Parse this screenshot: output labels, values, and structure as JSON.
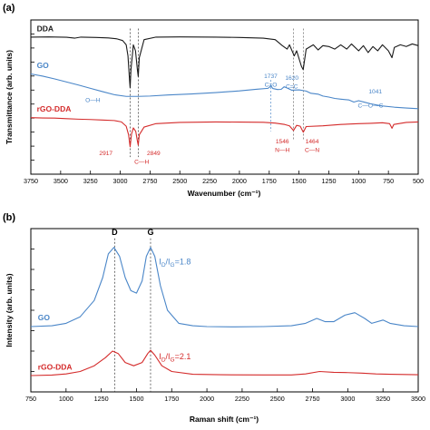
{
  "chart_data": [
    {
      "type": "line",
      "panel_label": "(a)",
      "xlabel": "Wavenumber (cm⁻¹)",
      "ylabel": "Transmittance (arb. units)",
      "x_reversed": true,
      "xlim": [
        3750,
        500
      ],
      "x_ticks": [
        3750,
        3500,
        3250,
        3000,
        2750,
        2500,
        2250,
        2000,
        1750,
        1500,
        1250,
        1000,
        750,
        500
      ],
      "y_tick_count": 11,
      "grid": false,
      "series": [
        {
          "name": "DDA",
          "color": "#1a1a1a",
          "points": [
            [
              3750,
              0.95
            ],
            [
              3600,
              0.951
            ],
            [
              3450,
              0.949
            ],
            [
              3380,
              0.944
            ],
            [
              3330,
              0.95
            ],
            [
              3200,
              0.948
            ],
            [
              3100,
              0.945
            ],
            [
              3030,
              0.94
            ],
            [
              2980,
              0.93
            ],
            [
              2950,
              0.905
            ],
            [
              2935,
              0.84
            ],
            [
              2922,
              0.7
            ],
            [
              2917,
              0.655
            ],
            [
              2910,
              0.76
            ],
            [
              2890,
              0.905
            ],
            [
              2872,
              0.87
            ],
            [
              2856,
              0.76
            ],
            [
              2849,
              0.72
            ],
            [
              2840,
              0.83
            ],
            [
              2800,
              0.935
            ],
            [
              2700,
              0.95
            ],
            [
              2500,
              0.951
            ],
            [
              2200,
              0.95
            ],
            [
              2000,
              0.948
            ],
            [
              1900,
              0.946
            ],
            [
              1800,
              0.944
            ],
            [
              1700,
              0.935
            ],
            [
              1640,
              0.9
            ],
            [
              1600,
              0.88
            ],
            [
              1580,
              0.905
            ],
            [
              1540,
              0.84
            ],
            [
              1520,
              0.87
            ],
            [
              1480,
              0.78
            ],
            [
              1465,
              0.76
            ],
            [
              1440,
              0.88
            ],
            [
              1380,
              0.905
            ],
            [
              1340,
              0.875
            ],
            [
              1300,
              0.9
            ],
            [
              1250,
              0.895
            ],
            [
              1200,
              0.88
            ],
            [
              1150,
              0.905
            ],
            [
              1100,
              0.88
            ],
            [
              1060,
              0.91
            ],
            [
              1000,
              0.87
            ],
            [
              960,
              0.9
            ],
            [
              920,
              0.86
            ],
            [
              880,
              0.895
            ],
            [
              840,
              0.87
            ],
            [
              800,
              0.905
            ],
            [
              750,
              0.87
            ],
            [
              720,
              0.83
            ],
            [
              700,
              0.89
            ],
            [
              650,
              0.905
            ],
            [
              600,
              0.895
            ],
            [
              550,
              0.91
            ],
            [
              500,
              0.9
            ]
          ]
        },
        {
          "name": "GO",
          "color": "#4a86c8",
          "points": [
            [
              3750,
              0.735
            ],
            [
              3650,
              0.722
            ],
            [
              3550,
              0.706
            ],
            [
              3450,
              0.688
            ],
            [
              3350,
              0.67
            ],
            [
              3250,
              0.651
            ],
            [
              3150,
              0.632
            ],
            [
              3050,
              0.614
            ],
            [
              2950,
              0.604
            ],
            [
              2850,
              0.604
            ],
            [
              2750,
              0.606
            ],
            [
              2600,
              0.612
            ],
            [
              2400,
              0.618
            ],
            [
              2200,
              0.626
            ],
            [
              2000,
              0.636
            ],
            [
              1850,
              0.646
            ],
            [
              1760,
              0.651
            ],
            [
              1735,
              0.665
            ],
            [
              1720,
              0.65
            ],
            [
              1680,
              0.644
            ],
            [
              1650,
              0.645
            ],
            [
              1625,
              0.66
            ],
            [
              1600,
              0.653
            ],
            [
              1560,
              0.64
            ],
            [
              1500,
              0.642
            ],
            [
              1440,
              0.635
            ],
            [
              1400,
              0.622
            ],
            [
              1340,
              0.617
            ],
            [
              1300,
              0.606
            ],
            [
              1250,
              0.6
            ],
            [
              1200,
              0.592
            ],
            [
              1150,
              0.588
            ],
            [
              1080,
              0.583
            ],
            [
              1040,
              0.571
            ],
            [
              1000,
              0.579
            ],
            [
              950,
              0.57
            ],
            [
              900,
              0.561
            ],
            [
              850,
              0.554
            ],
            [
              800,
              0.548
            ],
            [
              700,
              0.541
            ],
            [
              600,
              0.536
            ],
            [
              500,
              0.532
            ]
          ]
        },
        {
          "name": "rGO-DDA",
          "color": "#d42b2b",
          "points": [
            [
              3750,
              0.48
            ],
            [
              3650,
              0.478
            ],
            [
              3550,
              0.477
            ],
            [
              3450,
              0.474
            ],
            [
              3350,
              0.471
            ],
            [
              3250,
              0.469
            ],
            [
              3150,
              0.466
            ],
            [
              3050,
              0.463
            ],
            [
              2990,
              0.455
            ],
            [
              2950,
              0.43
            ],
            [
              2930,
              0.38
            ],
            [
              2917,
              0.31
            ],
            [
              2905,
              0.385
            ],
            [
              2890,
              0.42
            ],
            [
              2870,
              0.4
            ],
            [
              2855,
              0.34
            ],
            [
              2849,
              0.32
            ],
            [
              2840,
              0.38
            ],
            [
              2800,
              0.425
            ],
            [
              2700,
              0.445
            ],
            [
              2500,
              0.452
            ],
            [
              2200,
              0.455
            ],
            [
              2000,
              0.454
            ],
            [
              1800,
              0.453
            ],
            [
              1700,
              0.448
            ],
            [
              1620,
              0.44
            ],
            [
              1580,
              0.432
            ],
            [
              1546,
              0.405
            ],
            [
              1520,
              0.435
            ],
            [
              1490,
              0.43
            ],
            [
              1464,
              0.395
            ],
            [
              1440,
              0.428
            ],
            [
              1300,
              0.432
            ],
            [
              1150,
              0.44
            ],
            [
              1000,
              0.445
            ],
            [
              900,
              0.447
            ],
            [
              800,
              0.45
            ],
            [
              740,
              0.445
            ],
            [
              720,
              0.418
            ],
            [
              705,
              0.44
            ],
            [
              600,
              0.452
            ],
            [
              500,
              0.455
            ]
          ]
        }
      ],
      "series_labels": [
        {
          "text": "DDA",
          "color": "#1a1a1a",
          "x": 3700,
          "y": 0.985
        },
        {
          "text": "GO",
          "color": "#4a86c8",
          "x": 3700,
          "y": 0.77
        },
        {
          "text": "rGO-DDA",
          "color": "#d42b2b",
          "x": 3700,
          "y": 0.515
        }
      ],
      "annotations": [
        {
          "text": "O—H",
          "color": "#4a86c8",
          "x": 3230,
          "y": 0.57
        },
        {
          "text": "1737",
          "color": "#4a86c8",
          "x": 1737,
          "y": 0.71
        },
        {
          "text": "C=O",
          "color": "#4a86c8",
          "x": 1737,
          "y": 0.66
        },
        {
          "text": "1620",
          "color": "#4a86c8",
          "x": 1560,
          "y": 0.7
        },
        {
          "text": "C=C",
          "color": "#4a86c8",
          "x": 1560,
          "y": 0.65
        },
        {
          "text": "1041",
          "color": "#4a86c8",
          "x": 860,
          "y": 0.62
        },
        {
          "text": "C—O—C",
          "color": "#4a86c8",
          "x": 900,
          "y": 0.54
        },
        {
          "text": "2917",
          "color": "#d42b2b",
          "x": 3120,
          "y": 0.26
        },
        {
          "text": "C—H",
          "color": "#d42b2b",
          "x": 2820,
          "y": 0.21
        },
        {
          "text": "2849",
          "color": "#d42b2b",
          "x": 2720,
          "y": 0.26
        },
        {
          "text": "1546",
          "color": "#d42b2b",
          "x": 1640,
          "y": 0.33
        },
        {
          "text": "N—H",
          "color": "#d42b2b",
          "x": 1640,
          "y": 0.28
        },
        {
          "text": "1464",
          "color": "#d42b2b",
          "x": 1390,
          "y": 0.33
        },
        {
          "text": "C—N",
          "color": "#d42b2b",
          "x": 1390,
          "y": 0.28
        }
      ],
      "marker_lines": [
        {
          "x": 2917,
          "y_top": 1.0,
          "y_bottom": 0.25,
          "color": "#333333"
        },
        {
          "x": 2849,
          "y_top": 1.0,
          "y_bottom": 0.25,
          "color": "#333333"
        },
        {
          "x": 1737,
          "y_top": 0.7,
          "y_bottom": 0.4,
          "color": "#4a86c8"
        },
        {
          "x": 1546,
          "y_top": 1.0,
          "y_bottom": 0.35,
          "color": "#666666"
        },
        {
          "x": 1464,
          "y_top": 1.0,
          "y_bottom": 0.35,
          "color": "#666666"
        }
      ],
      "ylim": [
        0.15,
        1.05
      ]
    },
    {
      "type": "line",
      "panel_label": "(b)",
      "xlabel": "Raman shift (cm⁻¹)",
      "ylabel": "Intensity (arb. units)",
      "xlim": [
        750,
        3500
      ],
      "x_ticks": [
        750,
        1000,
        1250,
        1500,
        1750,
        2000,
        2250,
        2500,
        2750,
        3000,
        3250,
        3500
      ],
      "y_tick_count": 8,
      "grid": false,
      "series": [
        {
          "name": "GO",
          "color": "#4a86c8",
          "points": [
            [
              750,
              0.4
            ],
            [
              900,
              0.405
            ],
            [
              1000,
              0.42
            ],
            [
              1100,
              0.46
            ],
            [
              1200,
              0.56
            ],
            [
              1260,
              0.7
            ],
            [
              1300,
              0.845
            ],
            [
              1340,
              0.885
            ],
            [
              1380,
              0.83
            ],
            [
              1420,
              0.7
            ],
            [
              1460,
              0.62
            ],
            [
              1500,
              0.605
            ],
            [
              1540,
              0.68
            ],
            [
              1570,
              0.83
            ],
            [
              1600,
              0.885
            ],
            [
              1630,
              0.83
            ],
            [
              1670,
              0.65
            ],
            [
              1720,
              0.5
            ],
            [
              1800,
              0.42
            ],
            [
              1900,
              0.405
            ],
            [
              2000,
              0.4
            ],
            [
              2200,
              0.398
            ],
            [
              2400,
              0.4
            ],
            [
              2600,
              0.405
            ],
            [
              2700,
              0.42
            ],
            [
              2780,
              0.45
            ],
            [
              2840,
              0.43
            ],
            [
              2900,
              0.43
            ],
            [
              2980,
              0.47
            ],
            [
              3050,
              0.485
            ],
            [
              3120,
              0.45
            ],
            [
              3170,
              0.42
            ],
            [
              3250,
              0.44
            ],
            [
              3300,
              0.42
            ],
            [
              3400,
              0.405
            ],
            [
              3500,
              0.4
            ]
          ]
        },
        {
          "name": "rGO-DDA",
          "color": "#d42b2b",
          "points": [
            [
              750,
              0.1
            ],
            [
              900,
              0.103
            ],
            [
              1000,
              0.11
            ],
            [
              1100,
              0.125
            ],
            [
              1200,
              0.16
            ],
            [
              1280,
              0.21
            ],
            [
              1330,
              0.25
            ],
            [
              1370,
              0.235
            ],
            [
              1420,
              0.18
            ],
            [
              1480,
              0.16
            ],
            [
              1540,
              0.18
            ],
            [
              1580,
              0.235
            ],
            [
              1600,
              0.255
            ],
            [
              1630,
              0.225
            ],
            [
              1680,
              0.16
            ],
            [
              1750,
              0.125
            ],
            [
              1900,
              0.108
            ],
            [
              2100,
              0.105
            ],
            [
              2400,
              0.104
            ],
            [
              2600,
              0.104
            ],
            [
              2700,
              0.11
            ],
            [
              2800,
              0.125
            ],
            [
              2900,
              0.12
            ],
            [
              3000,
              0.118
            ],
            [
              3100,
              0.115
            ],
            [
              3200,
              0.11
            ],
            [
              3300,
              0.108
            ],
            [
              3500,
              0.105
            ]
          ]
        }
      ],
      "series_labels": [
        {
          "text": "GO",
          "color": "#4a86c8",
          "x": 800,
          "y": 0.44
        },
        {
          "text": "rGO-DDA",
          "color": "#d42b2b",
          "x": 800,
          "y": 0.135
        }
      ],
      "peak_labels": [
        {
          "text": "D",
          "x": 1345,
          "y": 0.96
        },
        {
          "text": "G",
          "x": 1600,
          "y": 0.96
        }
      ],
      "ratio_labels": [
        {
          "main": "I",
          "sub1": "D",
          "mid": "/I",
          "sub2": "G",
          "value": "=1.8",
          "color": "#4a86c8",
          "x": 1660,
          "y": 0.78
        },
        {
          "main": "I",
          "sub1": "D",
          "mid": "/I",
          "sub2": "G",
          "value": "=2.1",
          "color": "#d42b2b",
          "x": 1660,
          "y": 0.2
        }
      ],
      "marker_lines": [
        {
          "x": 1345,
          "y_top": 0.94,
          "y_bottom": 0.0
        },
        {
          "x": 1600,
          "y_top": 0.94,
          "y_bottom": 0.0
        }
      ],
      "ylim": [
        0.0,
        1.0
      ]
    }
  ]
}
